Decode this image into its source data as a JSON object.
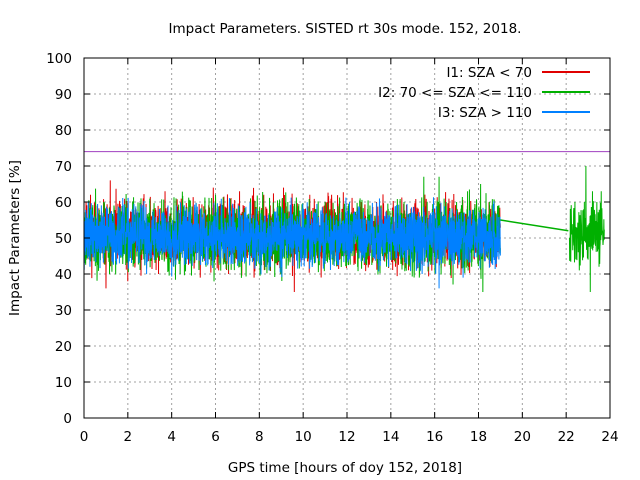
{
  "chart_data": {
    "type": "line",
    "title": "Impact Parameters. SISTED rt 30s mode. 152, 2018.",
    "xlabel": "GPS time [hours of doy 152, 2018]",
    "ylabel": "Impact Parameters [%]",
    "xlim": [
      0,
      24
    ],
    "ylim": [
      0,
      100
    ],
    "x_ticks": [
      0,
      2,
      4,
      6,
      8,
      10,
      12,
      14,
      16,
      18,
      20,
      22,
      24
    ],
    "y_ticks": [
      0,
      10,
      20,
      30,
      40,
      50,
      60,
      70,
      80,
      90,
      100
    ],
    "grid": true,
    "legend_position": "top-right",
    "threshold": {
      "value": 74,
      "color": "#a040c0"
    },
    "series": [
      {
        "name": "I1: SZA < 70",
        "color": "#e00000",
        "time_range": [
          0,
          19.0
        ],
        "typical_range": [
          44,
          58
        ],
        "points": [
          {
            "x": 0.05,
            "y": 53
          },
          {
            "x": 0.3,
            "y": 62
          },
          {
            "x": 0.6,
            "y": 59
          },
          {
            "x": 1.0,
            "y": 36
          },
          {
            "x": 1.2,
            "y": 66
          },
          {
            "x": 2.0,
            "y": 38
          },
          {
            "x": 2.7,
            "y": 61
          },
          {
            "x": 3.4,
            "y": 40
          },
          {
            "x": 3.7,
            "y": 63
          },
          {
            "x": 5.3,
            "y": 39
          },
          {
            "x": 5.9,
            "y": 64
          },
          {
            "x": 6.6,
            "y": 40
          },
          {
            "x": 7.1,
            "y": 63
          },
          {
            "x": 8.2,
            "y": 62
          },
          {
            "x": 8.7,
            "y": 43
          },
          {
            "x": 9.1,
            "y": 64
          },
          {
            "x": 9.6,
            "y": 35
          },
          {
            "x": 10.3,
            "y": 62
          },
          {
            "x": 11.3,
            "y": 62
          },
          {
            "x": 12.2,
            "y": 57
          },
          {
            "x": 13.5,
            "y": 59
          },
          {
            "x": 14.6,
            "y": 49
          },
          {
            "x": 16.2,
            "y": 52
          }
        ]
      },
      {
        "name": "I2: 70 <= SZA <= 110",
        "color": "#00b000",
        "time_range": [
          0,
          19.0
        ],
        "typical_range": [
          43,
          58
        ],
        "points": [
          {
            "x": 0.1,
            "y": 44
          },
          {
            "x": 0.9,
            "y": 60
          },
          {
            "x": 2.6,
            "y": 61
          },
          {
            "x": 4.2,
            "y": 61
          },
          {
            "x": 6.0,
            "y": 62
          },
          {
            "x": 7.6,
            "y": 61
          },
          {
            "x": 9.3,
            "y": 60
          },
          {
            "x": 11.0,
            "y": 60
          },
          {
            "x": 12.6,
            "y": 61
          },
          {
            "x": 13.8,
            "y": 42
          },
          {
            "x": 14.6,
            "y": 60
          },
          {
            "x": 15.3,
            "y": 39
          },
          {
            "x": 15.5,
            "y": 67
          },
          {
            "x": 16.2,
            "y": 67
          },
          {
            "x": 17.0,
            "y": 60
          },
          {
            "x": 17.5,
            "y": 63
          },
          {
            "x": 17.8,
            "y": 45
          },
          {
            "x": 18.1,
            "y": 65
          },
          {
            "x": 18.2,
            "y": 35
          },
          {
            "x": 18.5,
            "y": 60
          }
        ],
        "gap_segment": [
          {
            "x": 19.0,
            "y": 55
          },
          {
            "x": 22.1,
            "y": 52
          }
        ],
        "late_points": [
          {
            "x": 22.2,
            "y": 45
          },
          {
            "x": 22.4,
            "y": 60
          },
          {
            "x": 22.6,
            "y": 41
          },
          {
            "x": 22.8,
            "y": 58
          },
          {
            "x": 22.9,
            "y": 70
          },
          {
            "x": 23.0,
            "y": 44
          },
          {
            "x": 23.1,
            "y": 35
          },
          {
            "x": 23.2,
            "y": 63
          },
          {
            "x": 23.4,
            "y": 60
          },
          {
            "x": 23.5,
            "y": 42
          },
          {
            "x": 23.6,
            "y": 63
          },
          {
            "x": 23.75,
            "y": 48
          }
        ]
      },
      {
        "name": "I3: SZA > 110",
        "color": "#0080ff",
        "time_range": [
          0,
          19.0
        ],
        "typical_range": [
          44,
          57
        ],
        "points": [
          {
            "x": 0.2,
            "y": 57
          },
          {
            "x": 2.2,
            "y": 58
          },
          {
            "x": 4.1,
            "y": 42
          },
          {
            "x": 6.1,
            "y": 58
          },
          {
            "x": 8.5,
            "y": 42
          },
          {
            "x": 10.8,
            "y": 57
          },
          {
            "x": 12.3,
            "y": 57
          },
          {
            "x": 13.9,
            "y": 42
          },
          {
            "x": 15.7,
            "y": 42
          },
          {
            "x": 16.2,
            "y": 36
          },
          {
            "x": 17.3,
            "y": 39
          },
          {
            "x": 18.3,
            "y": 58
          }
        ]
      }
    ]
  }
}
